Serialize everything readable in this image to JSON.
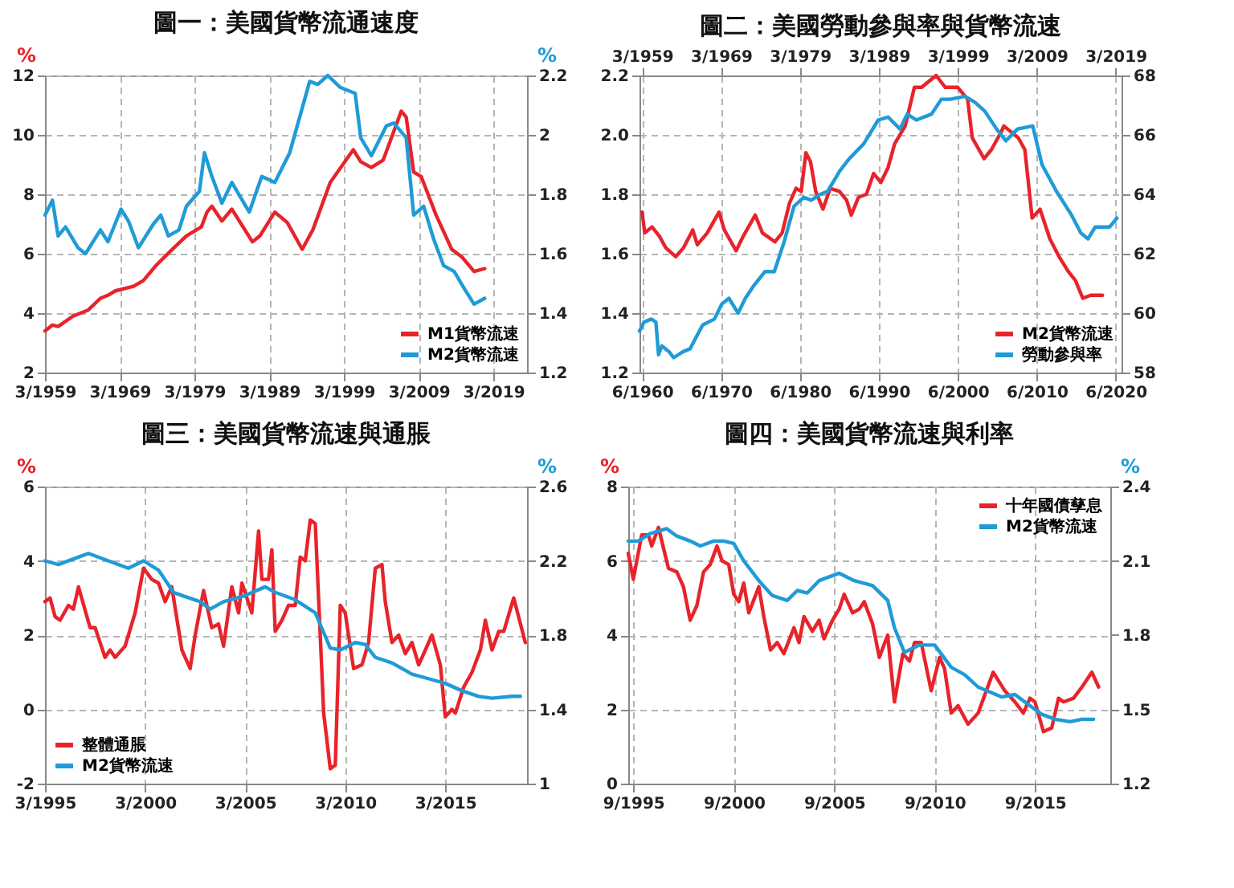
{
  "chart_data": [
    {
      "type": "line",
      "title": "圖一：美國貨幣流通速度",
      "ylabel": "%",
      "y2label": "%",
      "grid": true,
      "legend": "bottom right",
      "xlim": [
        "1959-03",
        "2023-09"
      ],
      "xticks": [
        {
          "value": "1959-03",
          "label": "3/1959"
        },
        {
          "value": "1969-03",
          "label": "3/1969"
        },
        {
          "value": "1979-03",
          "label": "3/1979"
        },
        {
          "value": "1989-03",
          "label": "3/1989"
        },
        {
          "value": "1999-03",
          "label": "3/1999"
        },
        {
          "value": "2009-03",
          "label": "3/2009"
        },
        {
          "value": "2019-03",
          "label": "3/2019"
        }
      ],
      "ylim": [
        2,
        12
      ],
      "yticks": [
        2,
        4,
        6,
        8,
        10,
        12
      ],
      "y2lim": [
        1.2,
        2.2
      ],
      "y2ticks": [
        1.2,
        1.4,
        1.6,
        1.8,
        2,
        2.2
      ],
      "series": [
        {
          "name": "M1貨幣流速",
          "color": "#e8232a",
          "axis": "y",
          "x": [
            "1959-03",
            "1960-03",
            "1960-12",
            "1962-12",
            "1964-12",
            "1966-08",
            "1967-08",
            "1968-08",
            "1971-01",
            "1972-05",
            "1974-01",
            "1976-06",
            "1978-02",
            "1980-02",
            "1980-11",
            "1981-07",
            "1982-11",
            "1984-03",
            "1986-12",
            "1987-12",
            "1989-12",
            "1991-08",
            "1993-08",
            "1995-01",
            "1997-05",
            "2000-06",
            "2001-06",
            "2002-11",
            "2004-06",
            "2006-11",
            "2007-07",
            "2008-07",
            "2009-07",
            "2011-07",
            "2013-08",
            "2014-12",
            "2016-08",
            "2018-01"
          ],
          "values": [
            3.4,
            3.6,
            3.55,
            3.9,
            4.1,
            4.5,
            4.6,
            4.75,
            4.9,
            5.1,
            5.6,
            6.2,
            6.6,
            6.9,
            7.4,
            7.6,
            7.1,
            7.5,
            6.4,
            6.6,
            7.4,
            7.05,
            6.15,
            6.8,
            8.4,
            9.5,
            9.1,
            8.9,
            9.15,
            10.8,
            10.6,
            8.75,
            8.6,
            7.3,
            6.15,
            5.9,
            5.4,
            5.5
          ]
        },
        {
          "name": "M2貨幣流速",
          "color": "#1f9bd7",
          "axis": "y2",
          "x": [
            "1959-03",
            "1960-03",
            "1960-12",
            "1961-12",
            "1963-08",
            "1964-08",
            "1966-08",
            "1967-08",
            "1969-05",
            "1970-05",
            "1971-09",
            "1973-09",
            "1974-09",
            "1975-09",
            "1977-02",
            "1978-02",
            "1979-11",
            "1980-07",
            "1981-07",
            "1982-11",
            "1984-03",
            "1986-07",
            "1988-03",
            "1989-12",
            "1991-12",
            "1994-08",
            "1995-09",
            "1997-01",
            "1998-09",
            "2000-09",
            "2001-06",
            "2002-11",
            "2003-11",
            "2004-11",
            "2005-11",
            "2007-07",
            "2008-07",
            "2009-11",
            "2011-03",
            "2012-07",
            "2013-12",
            "2015-05",
            "2016-08",
            "2018-01"
          ],
          "values": [
            1.73,
            1.78,
            1.66,
            1.69,
            1.62,
            1.6,
            1.68,
            1.64,
            1.75,
            1.71,
            1.62,
            1.7,
            1.73,
            1.66,
            1.68,
            1.76,
            1.81,
            1.94,
            1.86,
            1.77,
            1.84,
            1.74,
            1.86,
            1.84,
            1.94,
            2.18,
            2.17,
            2.2,
            2.16,
            2.14,
            1.99,
            1.93,
            1.98,
            2.03,
            2.04,
            1.99,
            1.73,
            1.76,
            1.65,
            1.56,
            1.54,
            1.48,
            1.43,
            1.45
          ]
        }
      ]
    },
    {
      "type": "line",
      "title": "圖二：美國勞動參與率與貨幣流速",
      "grid": true,
      "legend": "bottom right",
      "xlim": [
        "1960-02",
        "2021-03"
      ],
      "xticks": [
        {
          "value": "1960-06",
          "label": "6/1960"
        },
        {
          "value": "1970-06",
          "label": "6/1970"
        },
        {
          "value": "1980-06",
          "label": "6/1980"
        },
        {
          "value": "1990-06",
          "label": "6/1990"
        },
        {
          "value": "2000-06",
          "label": "6/2000"
        },
        {
          "value": "2010-06",
          "label": "6/2010"
        },
        {
          "value": "2020-06",
          "label": "6/2020"
        }
      ],
      "x2lim": [
        "1958-11",
        "2019-12"
      ],
      "x2ticks": [
        {
          "value": "1959-03",
          "label": "3/1959"
        },
        {
          "value": "1969-03",
          "label": "3/1969"
        },
        {
          "value": "1979-03",
          "label": "3/1979"
        },
        {
          "value": "1989-03",
          "label": "3/1989"
        },
        {
          "value": "1999-03",
          "label": "3/1999"
        },
        {
          "value": "2009-03",
          "label": "3/2009"
        },
        {
          "value": "2019-03",
          "label": "3/2019"
        }
      ],
      "ylim": [
        1.2,
        2.2
      ],
      "yticks": [
        1.2,
        1.4,
        1.6,
        1.8,
        {
          "value": 2,
          "label": "2.0"
        },
        2.2
      ],
      "y2lim": [
        58,
        68
      ],
      "y2ticks": [
        58,
        60,
        62,
        64,
        66,
        68
      ],
      "series": [
        {
          "name": "M2貨幣流速",
          "color": "#e8232a",
          "axis": "y",
          "x": [
            "1960-06",
            "1960-10",
            "1961-09",
            "1962-08",
            "1963-06",
            "1964-09",
            "1965-09",
            "1966-11",
            "1967-06",
            "1968-09",
            "1970-03",
            "1970-11",
            "1972-05",
            "1973-04",
            "1974-10",
            "1975-09",
            "1977-04",
            "1978-03",
            "1979-02",
            "1979-12",
            "1980-08",
            "1981-03",
            "1981-10",
            "1982-06",
            "1983-05",
            "1984-04",
            "1985-06",
            "1986-05",
            "1986-12",
            "1987-11",
            "1988-11",
            "1989-10",
            "1990-09",
            "1991-08",
            "1992-06",
            "1993-10",
            "1994-12",
            "1995-11",
            "1997-09",
            "1998-11",
            "2000-06",
            "2001-09",
            "2002-04",
            "2003-10",
            "2004-09",
            "2005-12",
            "2006-04",
            "2008-02",
            "2008-12",
            "2009-11",
            "2010-11",
            "2012-02",
            "2013-04",
            "2014-06",
            "2015-05",
            "2016-04",
            "2017-04",
            "2018-10"
          ],
          "values": [
            1.74,
            1.67,
            1.69,
            1.66,
            1.62,
            1.59,
            1.62,
            1.68,
            1.63,
            1.67,
            1.74,
            1.68,
            1.61,
            1.66,
            1.73,
            1.67,
            1.64,
            1.67,
            1.77,
            1.82,
            1.81,
            1.94,
            1.91,
            1.81,
            1.75,
            1.82,
            1.81,
            1.78,
            1.73,
            1.79,
            1.8,
            1.87,
            1.84,
            1.89,
            1.97,
            2.03,
            2.16,
            2.16,
            2.2,
            2.16,
            2.16,
            2.12,
            1.99,
            1.92,
            1.95,
            2.01,
            2.03,
            1.99,
            1.95,
            1.72,
            1.75,
            1.65,
            1.59,
            1.54,
            1.51,
            1.45,
            1.46,
            1.46
          ]
        },
        {
          "name": "勞動參與率",
          "color": "#1f9bd7",
          "axis": "y2",
          "x": [
            "1960-02",
            "1960-09",
            "1961-08",
            "1962-03",
            "1962-07",
            "1962-12",
            "1963-11",
            "1964-06",
            "1965-08",
            "1966-07",
            "1967-02",
            "1968-02",
            "1969-08",
            "1970-07",
            "1971-06",
            "1972-08",
            "1973-07",
            "1974-07",
            "1976-01",
            "1977-03",
            "1978-06",
            "1979-09",
            "1980-12",
            "1981-11",
            "1983-01",
            "1983-12",
            "1985-07",
            "1986-09",
            "1988-07",
            "1990-05",
            "1991-08",
            "1993-02",
            "1994-01",
            "1995-03",
            "1997-02",
            "1998-05",
            "1999-07",
            "2001-05",
            "2002-08",
            "2003-11",
            "2005-05",
            "2006-07",
            "2008-01",
            "2009-12",
            "2011-02",
            "2012-12",
            "2014-11",
            "2016-01",
            "2016-12",
            "2017-11",
            "2019-09",
            "2020-08"
          ],
          "values": [
            59.4,
            59.7,
            59.8,
            59.7,
            58.6,
            58.9,
            58.7,
            58.5,
            58.7,
            58.8,
            59.1,
            59.6,
            59.8,
            60.3,
            60.5,
            60,
            60.5,
            60.9,
            61.4,
            61.4,
            62.4,
            63.6,
            63.9,
            63.8,
            64,
            64.1,
            64.8,
            65.2,
            65.7,
            66.5,
            66.6,
            66.2,
            66.7,
            66.5,
            66.7,
            67.2,
            67.2,
            67.3,
            67.1,
            66.8,
            66.2,
            65.8,
            66.2,
            66.3,
            65,
            64.1,
            63.3,
            62.7,
            62.5,
            62.9,
            62.9,
            63.2
          ]
        }
      ]
    },
    {
      "type": "line",
      "title": "圖三：美國貨幣流速與通脹",
      "ylabel": "%",
      "y2label": "%",
      "grid": true,
      "legend": "bottom left",
      "xlim": [
        "1995-03",
        "2019-04"
      ],
      "xticks": [
        {
          "value": "1995-03",
          "label": "3/1995"
        },
        {
          "value": "2000-03",
          "label": "3/2000"
        },
        {
          "value": "2005-03",
          "label": "3/2005"
        },
        {
          "value": "2010-03",
          "label": "3/2010"
        },
        {
          "value": "2015-03",
          "label": "3/2015"
        }
      ],
      "ylim": [
        -2,
        6
      ],
      "yticks": [
        -2,
        0,
        2,
        4,
        6
      ],
      "y2lim": [
        1,
        2.6
      ],
      "y2ticks": [
        1,
        1.4,
        1.8,
        2.2,
        2.6
      ],
      "series": [
        {
          "name": "整體通脹",
          "color": "#e8232a",
          "axis": "y",
          "x": [
            "1995-03",
            "1995-06",
            "1995-09",
            "1995-12",
            "1996-05",
            "1996-08",
            "1996-11",
            "1997-06",
            "1997-09",
            "1998-03",
            "1998-06",
            "1998-09",
            "1999-03",
            "1999-09",
            "2000-02",
            "2000-07",
            "2000-11",
            "2001-03",
            "2001-07",
            "2002-01",
            "2002-06",
            "2002-09",
            "2003-02",
            "2003-07",
            "2003-11",
            "2004-02",
            "2004-07",
            "2004-11",
            "2005-01",
            "2005-07",
            "2005-11",
            "2006-01",
            "2006-05",
            "2006-07",
            "2006-09",
            "2007-01",
            "2007-05",
            "2007-09",
            "2007-12",
            "2008-03",
            "2008-06",
            "2008-09",
            "2009-02",
            "2009-06",
            "2009-09",
            "2009-12",
            "2010-03",
            "2010-08",
            "2011-01",
            "2011-05",
            "2011-09",
            "2012-01",
            "2012-03",
            "2012-07",
            "2012-11",
            "2013-03",
            "2013-07",
            "2013-11",
            "2014-02",
            "2014-07",
            "2014-12",
            "2015-03",
            "2015-07",
            "2015-09",
            "2016-02",
            "2016-07",
            "2016-12",
            "2017-03",
            "2017-07",
            "2017-11",
            "2018-02",
            "2018-08",
            "2019-03"
          ],
          "values": [
            2.9,
            3.0,
            2.5,
            2.4,
            2.8,
            2.7,
            3.3,
            2.2,
            2.2,
            1.4,
            1.6,
            1.4,
            1.7,
            2.6,
            3.8,
            3.5,
            3.4,
            2.9,
            3.3,
            1.6,
            1.1,
            2.0,
            3.2,
            2.2,
            2.3,
            1.7,
            3.3,
            2.6,
            3.4,
            2.6,
            4.8,
            3.5,
            3.5,
            4.3,
            2.1,
            2.4,
            2.8,
            2.8,
            4.1,
            4.0,
            5.1,
            5.0,
            -0.1,
            -1.6,
            -1.5,
            2.8,
            2.6,
            1.1,
            1.2,
            1.8,
            3.8,
            3.9,
            2.9,
            1.8,
            2.0,
            1.5,
            1.8,
            1.2,
            1.5,
            2.0,
            1.2,
            -0.2,
            0.0,
            -0.1,
            0.6,
            1.0,
            1.6,
            2.4,
            1.6,
            2.1,
            2.1,
            3.0,
            1.8
          ]
        },
        {
          "name": "M2貨幣流速",
          "color": "#1f9bd7",
          "axis": "y2",
          "x": [
            "1995-03",
            "1995-11",
            "1996-11",
            "1997-05",
            "1998-05",
            "1999-05",
            "2000-02",
            "2000-11",
            "2001-08",
            "2002-02",
            "2002-12",
            "2003-06",
            "2004-02",
            "2005-02",
            "2006-03",
            "2006-09",
            "2007-09",
            "2008-09",
            "2009-06",
            "2009-12",
            "2010-09",
            "2011-03",
            "2011-09",
            "2012-07",
            "2013-07",
            "2014-07",
            "2015-03",
            "2016-01",
            "2016-11",
            "2017-07",
            "2018-07",
            "2018-12"
          ],
          "values": [
            2.2,
            2.18,
            2.22,
            2.24,
            2.2,
            2.16,
            2.2,
            2.15,
            2.03,
            2.01,
            1.98,
            1.94,
            1.98,
            2.01,
            2.06,
            2.03,
            1.99,
            1.92,
            1.73,
            1.72,
            1.76,
            1.75,
            1.68,
            1.65,
            1.59,
            1.56,
            1.54,
            1.5,
            1.47,
            1.46,
            1.47,
            1.47
          ]
        }
      ]
    },
    {
      "type": "line",
      "title": "圖四：美國貨幣流速與利率",
      "ylabel": "%",
      "y2label": "%",
      "grid": true,
      "legend": "top right",
      "xlim": [
        "1995-06",
        "2019-06"
      ],
      "xticks": [
        {
          "value": "1995-09",
          "label": "9/1995"
        },
        {
          "value": "2000-09",
          "label": "9/2000"
        },
        {
          "value": "2005-09",
          "label": "9/2005"
        },
        {
          "value": "2010-09",
          "label": "9/2010"
        },
        {
          "value": "2015-09",
          "label": "9/2015"
        }
      ],
      "ylim": [
        0,
        8
      ],
      "yticks": [
        0,
        2,
        4,
        6,
        8
      ],
      "y2lim": [
        1.2,
        2.4
      ],
      "y2ticks": [
        1.2,
        1.5,
        1.8,
        2.1,
        2.4
      ],
      "series": [
        {
          "name": "十年國債孳息",
          "color": "#e8232a",
          "axis": "y",
          "x": [
            "1995-06",
            "1995-09",
            "1996-02",
            "1996-06",
            "1996-08",
            "1996-12",
            "1997-06",
            "1997-11",
            "1998-03",
            "1998-07",
            "1998-11",
            "1999-03",
            "1999-07",
            "1999-11",
            "2000-02",
            "2000-06",
            "2000-09",
            "2000-12",
            "2001-03",
            "2001-06",
            "2001-12",
            "2002-03",
            "2002-07",
            "2002-11",
            "2003-03",
            "2003-09",
            "2003-12",
            "2004-03",
            "2004-08",
            "2004-12",
            "2005-03",
            "2005-08",
            "2005-12",
            "2006-03",
            "2006-08",
            "2006-12",
            "2007-03",
            "2007-08",
            "2007-12",
            "2008-05",
            "2008-09",
            "2009-02",
            "2009-06",
            "2009-09",
            "2010-01",
            "2010-07",
            "2010-12",
            "2011-03",
            "2011-07",
            "2011-11",
            "2012-05",
            "2012-11",
            "2013-08",
            "2014-03",
            "2014-09",
            "2015-02",
            "2015-06",
            "2015-09",
            "2016-02",
            "2016-07",
            "2016-11",
            "2017-02",
            "2017-08",
            "2018-01",
            "2018-07",
            "2018-11"
          ],
          "values": [
            6.2,
            5.5,
            6.7,
            6.7,
            6.4,
            6.9,
            5.8,
            5.7,
            5.3,
            4.4,
            4.8,
            5.7,
            5.9,
            6.4,
            6.0,
            5.9,
            5.1,
            4.9,
            5.4,
            4.6,
            5.3,
            4.5,
            3.6,
            3.8,
            3.5,
            4.2,
            3.8,
            4.5,
            4.1,
            4.4,
            3.9,
            4.4,
            4.7,
            5.1,
            4.6,
            4.7,
            4.9,
            4.3,
            3.4,
            4.0,
            2.2,
            3.5,
            3.3,
            3.8,
            3.8,
            2.5,
            3.4,
            3.1,
            1.9,
            2.1,
            1.6,
            1.9,
            3.0,
            2.5,
            2.2,
            1.9,
            2.3,
            2.2,
            1.4,
            1.5,
            2.3,
            2.2,
            2.3,
            2.6,
            3.0,
            2.6
          ]
        },
        {
          "name": "M2貨幣流速",
          "color": "#1f9bd7",
          "axis": "y2",
          "x": [
            "1995-06",
            "1995-12",
            "1996-07",
            "1997-05",
            "1997-11",
            "1998-07",
            "1999-01",
            "1999-09",
            "2000-03",
            "2000-09",
            "2001-03",
            "2001-12",
            "2002-08",
            "2003-05",
            "2003-11",
            "2004-05",
            "2004-12",
            "2005-12",
            "2006-09",
            "2007-08",
            "2008-05",
            "2008-09",
            "2009-03",
            "2009-12",
            "2010-09",
            "2011-07",
            "2012-03",
            "2012-11",
            "2014-01",
            "2014-09",
            "2015-03",
            "2016-01",
            "2016-09",
            "2017-06",
            "2018-01",
            "2018-08"
          ],
          "values": [
            2.18,
            2.18,
            2.21,
            2.23,
            2.2,
            2.18,
            2.16,
            2.18,
            2.18,
            2.17,
            2.1,
            2.02,
            1.96,
            1.94,
            1.98,
            1.97,
            2.02,
            2.05,
            2.02,
            2.0,
            1.94,
            1.83,
            1.73,
            1.76,
            1.76,
            1.67,
            1.64,
            1.59,
            1.55,
            1.56,
            1.53,
            1.48,
            1.46,
            1.45,
            1.46,
            1.46
          ]
        }
      ]
    }
  ]
}
